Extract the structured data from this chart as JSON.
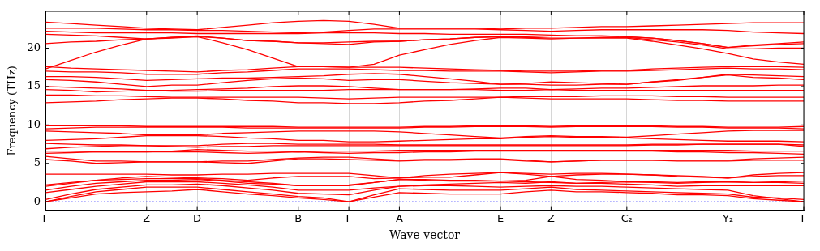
{
  "chart_data": {
    "type": "line",
    "xlabel": "Wave vector",
    "ylabel": "Frequency (THz)",
    "categories": [
      "Γ",
      null,
      null,
      null,
      "Z",
      null,
      "D",
      null,
      null,
      null,
      "B",
      null,
      "Γ",
      null,
      "A",
      null,
      null,
      null,
      "E",
      null,
      "Z",
      null,
      null,
      "C₂",
      null,
      null,
      null,
      "Y₂",
      null,
      null,
      "Γ"
    ],
    "ylim": [
      -1.1,
      24.8
    ],
    "yticks": [
      0,
      5,
      10,
      15,
      20
    ],
    "grid": "x",
    "legend": false,
    "marker": "none",
    "line_style": "solid",
    "ref_lines": [
      {
        "axis": "y",
        "value": 0,
        "color": "#0000ff",
        "line_style": "dotted"
      }
    ],
    "series": [
      {
        "color": "#ff0000",
        "values": [
          23.4,
          23.2,
          23.0,
          22.8,
          22.6,
          22.5,
          22.4,
          22.7,
          23.0,
          23.3,
          23.5,
          23.6,
          23.5,
          23.1,
          22.6,
          22.6,
          22.6,
          22.6,
          22.5,
          22.6,
          22.6,
          22.7,
          22.8,
          22.8,
          22.9,
          23.0,
          23.1,
          23.2,
          23.3,
          23.3,
          23.3
        ]
      },
      {
        "color": "#ff0000",
        "values": [
          22.6,
          22.6,
          22.6,
          22.5,
          22.4,
          22.4,
          22.3,
          22.3,
          22.2,
          22.1,
          22.0,
          22.1,
          22.3,
          22.5,
          22.5,
          22.5,
          22.5,
          22.5,
          22.4,
          22.3,
          22.2,
          22.3,
          22.4,
          22.4,
          22.4,
          22.4,
          22.4,
          22.3,
          22.1,
          22.0,
          21.9
        ]
      },
      {
        "color": "#ff0000",
        "values": [
          22.2,
          22.1,
          22.0,
          22.0,
          22.0,
          22.0,
          21.9,
          21.9,
          21.9,
          21.9,
          21.9,
          22.0,
          22.0,
          22.0,
          21.9,
          21.9,
          21.8,
          21.8,
          21.8,
          21.8,
          21.7,
          21.6,
          21.6,
          21.5,
          21.3,
          21.0,
          20.6,
          20.1,
          20.4,
          20.6,
          20.8
        ]
      },
      {
        "color": "#ff0000",
        "values": [
          21.8,
          21.7,
          21.6,
          21.4,
          21.2,
          21.4,
          21.6,
          21.3,
          21.0,
          20.9,
          20.7,
          20.7,
          20.8,
          20.9,
          20.9,
          21.1,
          21.2,
          21.4,
          21.5,
          21.4,
          21.3,
          21.3,
          21.4,
          21.4,
          21.1,
          20.8,
          20.4,
          19.9,
          19.9,
          20.0,
          20.0
        ]
      },
      {
        "color": "#ff0000",
        "values": [
          20.6,
          20.8,
          20.9,
          21.1,
          21.2,
          21.3,
          21.5,
          21.3,
          21.0,
          20.9,
          20.7,
          20.6,
          20.5,
          20.8,
          20.9,
          21.1,
          21.2,
          21.4,
          21.5,
          21.5,
          21.6,
          21.6,
          21.6,
          21.5,
          21.3,
          21.0,
          20.6,
          20.1,
          20.3,
          20.5,
          20.6
        ]
      },
      {
        "color": "#ff0000",
        "values": [
          17.3,
          18.4,
          19.5,
          20.4,
          21.2,
          21.4,
          21.5,
          20.7,
          19.8,
          18.7,
          17.6,
          17.6,
          17.5,
          17.9,
          19.1,
          19.8,
          20.5,
          21.0,
          21.4,
          21.3,
          21.2,
          21.3,
          21.3,
          21.3,
          20.9,
          20.4,
          19.9,
          19.3,
          18.6,
          18.2,
          17.9
        ]
      },
      {
        "color": "#ff0000",
        "values": [
          17.6,
          17.4,
          17.3,
          17.2,
          17.1,
          17.0,
          16.9,
          17.1,
          17.2,
          17.4,
          17.6,
          17.6,
          17.5,
          17.5,
          17.5,
          17.4,
          17.3,
          17.2,
          17.1,
          17.0,
          17.0,
          17.0,
          17.1,
          17.1,
          17.3,
          17.4,
          17.5,
          17.6,
          17.6,
          17.6,
          17.5
        ]
      },
      {
        "color": "#ff0000",
        "values": [
          17.0,
          16.9,
          16.9,
          16.8,
          16.6,
          16.6,
          16.6,
          16.8,
          16.9,
          17.1,
          17.3,
          17.3,
          17.3,
          17.2,
          17.1,
          17.1,
          17.0,
          17.0,
          17.0,
          16.9,
          16.8,
          16.9,
          17.0,
          17.0,
          17.1,
          17.2,
          17.3,
          17.4,
          17.3,
          17.3,
          17.2
        ]
      },
      {
        "color": "#ff0000",
        "values": [
          16.3,
          16.3,
          16.2,
          16.0,
          15.8,
          15.9,
          16.0,
          16.1,
          16.1,
          16.2,
          16.3,
          16.4,
          16.6,
          16.7,
          16.6,
          16.3,
          16.0,
          15.7,
          15.3,
          15.4,
          15.6,
          15.5,
          15.4,
          15.3,
          15.6,
          15.8,
          16.2,
          16.6,
          16.5,
          16.4,
          16.3
        ]
      },
      {
        "color": "#ff0000",
        "values": [
          15.9,
          15.8,
          15.6,
          15.3,
          15.0,
          15.2,
          15.2,
          15.5,
          15.8,
          16.0,
          16.1,
          16.0,
          15.8,
          15.9,
          15.9,
          15.7,
          15.5,
          15.4,
          15.3,
          15.3,
          15.2,
          15.2,
          15.3,
          15.3,
          15.6,
          15.9,
          16.2,
          16.5,
          16.2,
          16.1,
          15.9
        ]
      },
      {
        "color": "#ff0000",
        "values": [
          15.0,
          14.9,
          14.8,
          14.7,
          14.5,
          14.5,
          14.6,
          14.7,
          14.8,
          15.0,
          15.1,
          15.1,
          15.0,
          14.8,
          14.6,
          14.6,
          14.6,
          14.7,
          14.8,
          14.8,
          14.6,
          14.7,
          14.8,
          14.8,
          14.9,
          15.0,
          15.1,
          15.1,
          15.1,
          15.2,
          15.2
        ]
      },
      {
        "color": "#ff0000",
        "values": [
          14.6,
          14.5,
          14.3,
          14.4,
          14.5,
          14.4,
          14.4,
          14.5,
          14.5,
          14.5,
          14.5,
          14.5,
          14.6,
          14.6,
          14.6,
          14.6,
          14.6,
          14.6,
          14.5,
          14.5,
          14.6,
          14.5,
          14.5,
          14.5,
          14.5,
          14.5,
          14.5,
          14.5,
          14.5,
          14.5,
          14.5
        ]
      },
      {
        "color": "#ff0000",
        "values": [
          13.9,
          13.9,
          13.8,
          13.8,
          13.7,
          13.6,
          13.6,
          13.6,
          13.6,
          13.6,
          13.6,
          13.5,
          13.4,
          13.5,
          13.6,
          13.6,
          13.6,
          13.6,
          13.6,
          13.7,
          13.7,
          13.7,
          13.8,
          13.8,
          13.8,
          13.7,
          13.7,
          13.6,
          13.6,
          13.6,
          13.6
        ]
      },
      {
        "color": "#ff0000",
        "values": [
          12.9,
          13.0,
          13.1,
          13.3,
          13.4,
          13.5,
          13.5,
          13.4,
          13.2,
          13.1,
          12.9,
          12.9,
          12.8,
          12.8,
          12.9,
          13.1,
          13.2,
          13.4,
          13.6,
          13.5,
          13.4,
          13.4,
          13.4,
          13.4,
          13.3,
          13.2,
          13.2,
          13.1,
          13.1,
          13.1,
          13.1
        ]
      },
      {
        "color": "#ff0000",
        "values": [
          9.9,
          9.9,
          9.9,
          9.9,
          9.8,
          9.8,
          9.8,
          9.8,
          9.8,
          9.8,
          9.7,
          9.7,
          9.7,
          9.7,
          9.7,
          9.8,
          9.8,
          9.9,
          9.9,
          9.9,
          9.8,
          9.9,
          9.9,
          9.9,
          9.9,
          9.8,
          9.8,
          9.7,
          9.7,
          9.7,
          9.8
        ]
      },
      {
        "color": "#ff0000",
        "values": [
          9.5,
          9.6,
          9.7,
          9.7,
          9.7,
          9.7,
          9.7,
          9.7,
          9.6,
          9.6,
          9.6,
          9.6,
          9.6,
          9.6,
          9.6,
          9.7,
          9.7,
          9.8,
          9.8,
          9.8,
          9.7,
          9.8,
          9.8,
          9.8,
          9.8,
          9.7,
          9.7,
          9.6,
          9.6,
          9.6,
          9.5
        ]
      },
      {
        "color": "#ff0000",
        "values": [
          9.2,
          9.1,
          9.0,
          8.9,
          8.7,
          8.7,
          8.7,
          8.9,
          9.0,
          9.1,
          9.2,
          9.2,
          9.2,
          9.2,
          9.1,
          8.9,
          8.7,
          8.5,
          8.3,
          8.5,
          8.6,
          8.5,
          8.5,
          8.4,
          8.6,
          8.8,
          9.0,
          9.2,
          9.3,
          9.3,
          9.3
        ]
      },
      {
        "color": "#ff0000",
        "values": [
          8.0,
          8.1,
          8.2,
          8.4,
          8.6,
          8.6,
          8.6,
          8.5,
          8.3,
          8.2,
          8.0,
          8.0,
          7.8,
          7.8,
          7.9,
          8.0,
          8.1,
          8.2,
          8.2,
          8.4,
          8.5,
          8.4,
          8.4,
          8.3,
          8.2,
          8.1,
          8.0,
          7.9,
          7.9,
          7.9,
          7.8
        ]
      },
      {
        "color": "#ff0000",
        "values": [
          7.6,
          7.5,
          7.4,
          7.4,
          7.3,
          7.3,
          7.3,
          7.5,
          7.6,
          7.6,
          7.5,
          7.5,
          7.5,
          7.5,
          7.4,
          7.4,
          7.4,
          7.4,
          7.4,
          7.4,
          7.4,
          7.4,
          7.4,
          7.4,
          7.5,
          7.5,
          7.5,
          7.5,
          7.5,
          7.5,
          7.4
        ]
      },
      {
        "color": "#ff0000",
        "values": [
          6.9,
          7.1,
          7.2,
          7.3,
          7.3,
          7.2,
          7.1,
          7.2,
          7.2,
          7.3,
          7.3,
          7.3,
          7.3,
          7.3,
          7.3,
          7.3,
          7.3,
          7.3,
          7.3,
          7.3,
          7.3,
          7.3,
          7.3,
          7.3,
          7.4,
          7.4,
          7.5,
          7.5,
          7.5,
          7.5,
          7.2
        ]
      },
      {
        "color": "#ff0000",
        "values": [
          6.6,
          6.6,
          6.5,
          6.5,
          6.5,
          6.6,
          6.8,
          6.7,
          6.6,
          6.6,
          6.5,
          6.6,
          6.6,
          6.6,
          6.7,
          6.7,
          6.7,
          6.7,
          6.7,
          6.7,
          6.7,
          6.7,
          6.7,
          6.7,
          6.7,
          6.7,
          6.7,
          6.7,
          6.6,
          6.6,
          6.6
        ]
      },
      {
        "color": "#ff0000",
        "values": [
          6.3,
          6.4,
          6.5,
          6.5,
          6.5,
          6.5,
          6.5,
          6.4,
          6.3,
          6.4,
          6.5,
          6.4,
          6.3,
          6.4,
          6.4,
          6.5,
          6.5,
          6.6,
          6.6,
          6.6,
          6.6,
          6.6,
          6.6,
          6.6,
          6.6,
          6.5,
          6.5,
          6.4,
          6.4,
          6.3,
          6.2
        ]
      },
      {
        "color": "#ff0000",
        "values": [
          5.9,
          5.6,
          5.3,
          5.3,
          5.2,
          5.2,
          5.2,
          5.3,
          5.3,
          5.5,
          5.7,
          5.8,
          5.8,
          5.6,
          5.4,
          5.5,
          5.5,
          5.6,
          5.6,
          5.4,
          5.2,
          5.3,
          5.4,
          5.4,
          5.4,
          5.4,
          5.4,
          5.4,
          5.6,
          5.7,
          5.8
        ]
      },
      {
        "color": "#ff0000",
        "values": [
          5.5,
          5.3,
          5.0,
          5.1,
          5.2,
          5.2,
          5.2,
          5.1,
          5.0,
          5.3,
          5.6,
          5.6,
          5.5,
          5.4,
          5.3,
          5.4,
          5.4,
          5.5,
          5.5,
          5.3,
          5.2,
          5.3,
          5.4,
          5.4,
          5.4,
          5.3,
          5.3,
          5.3,
          5.4,
          5.4,
          5.4
        ]
      },
      {
        "color": "#ff0000",
        "values": [
          0,
          0.5,
          1.0,
          1.2,
          1.3,
          1.4,
          1.6,
          1.3,
          1.0,
          0.8,
          0.5,
          0.3,
          0,
          0.6,
          1.2,
          1.1,
          1.0,
          1.0,
          1.0,
          1.3,
          1.5,
          1.3,
          1.3,
          1.2,
          1.1,
          0.9,
          0.9,
          0.8,
          0.4,
          0.2,
          0
        ]
      },
      {
        "color": "#ff0000",
        "values": [
          0,
          0.7,
          1.3,
          1.6,
          1.9,
          1.9,
          1.9,
          1.6,
          1.3,
          1.0,
          0.7,
          0.5,
          0,
          0.9,
          1.7,
          1.6,
          1.5,
          1.5,
          1.5,
          1.7,
          1.9,
          1.6,
          1.5,
          1.4,
          1.3,
          1.2,
          1.1,
          1.0,
          0.6,
          0.5,
          0.3
        ]
      },
      {
        "color": "#ff0000",
        "values": [
          0.3,
          1.0,
          1.6,
          1.9,
          2.2,
          2.2,
          2.3,
          2.1,
          1.8,
          1.5,
          1.1,
          1.0,
          0.9,
          1.5,
          2.0,
          2.1,
          2.1,
          2.0,
          1.9,
          2.0,
          2.1,
          2.0,
          2.0,
          1.9,
          1.8,
          1.7,
          1.6,
          1.5,
          0.8,
          0.4,
          0
        ]
      },
      {
        "color": "#ff0000",
        "values": [
          1.2,
          1.6,
          2.0,
          2.3,
          2.6,
          2.6,
          2.6,
          2.4,
          2.2,
          1.9,
          1.5,
          1.5,
          1.5,
          1.8,
          2.0,
          2.2,
          2.3,
          2.4,
          2.5,
          2.4,
          2.6,
          2.4,
          2.4,
          2.3,
          2.2,
          2.0,
          2.1,
          2.1,
          2.1,
          2.1,
          2.1
        ]
      },
      {
        "color": "#ff0000",
        "values": [
          1.5,
          2.0,
          2.4,
          2.6,
          2.8,
          2.8,
          2.9,
          2.7,
          2.4,
          2.3,
          2.1,
          2.1,
          2.2,
          2.5,
          2.9,
          2.8,
          2.7,
          2.7,
          2.7,
          2.8,
          3.3,
          2.9,
          2.8,
          2.6,
          2.6,
          2.5,
          2.6,
          2.6,
          2.5,
          2.5,
          2.4
        ]
      },
      {
        "color": "#ff0000",
        "values": [
          2.0,
          2.4,
          2.8,
          3.1,
          3.3,
          3.2,
          3.1,
          3.0,
          2.8,
          3.1,
          3.3,
          3.3,
          3.3,
          3.0,
          3.1,
          3.2,
          3.2,
          3.5,
          3.8,
          3.6,
          3.3,
          3.5,
          3.6,
          3.6,
          3.5,
          3.3,
          3.2,
          3.1,
          3.3,
          3.4,
          3.4
        ]
      },
      {
        "color": "#ff0000",
        "values": [
          3.6,
          3.6,
          3.6,
          3.6,
          3.6,
          3.5,
          3.5,
          3.6,
          3.6,
          3.7,
          3.7,
          3.7,
          3.7,
          3.4,
          3.1,
          3.4,
          3.6,
          3.7,
          3.8,
          3.7,
          3.6,
          3.7,
          3.7,
          3.6,
          3.5,
          3.4,
          3.3,
          3.1,
          3.5,
          3.7,
          3.8
        ]
      },
      {
        "color": "#ff0000",
        "values": [
          2.2,
          2.5,
          2.8,
          2.9,
          3.0,
          3.0,
          3.0,
          2.8,
          2.6,
          2.4,
          2.1,
          2.1,
          2.1,
          2.5,
          2.9,
          2.9,
          2.8,
          2.8,
          2.7,
          2.6,
          2.5,
          2.4,
          2.5,
          2.6,
          2.5,
          2.4,
          2.5,
          2.6,
          2.5,
          2.6,
          2.7
        ]
      }
    ]
  }
}
